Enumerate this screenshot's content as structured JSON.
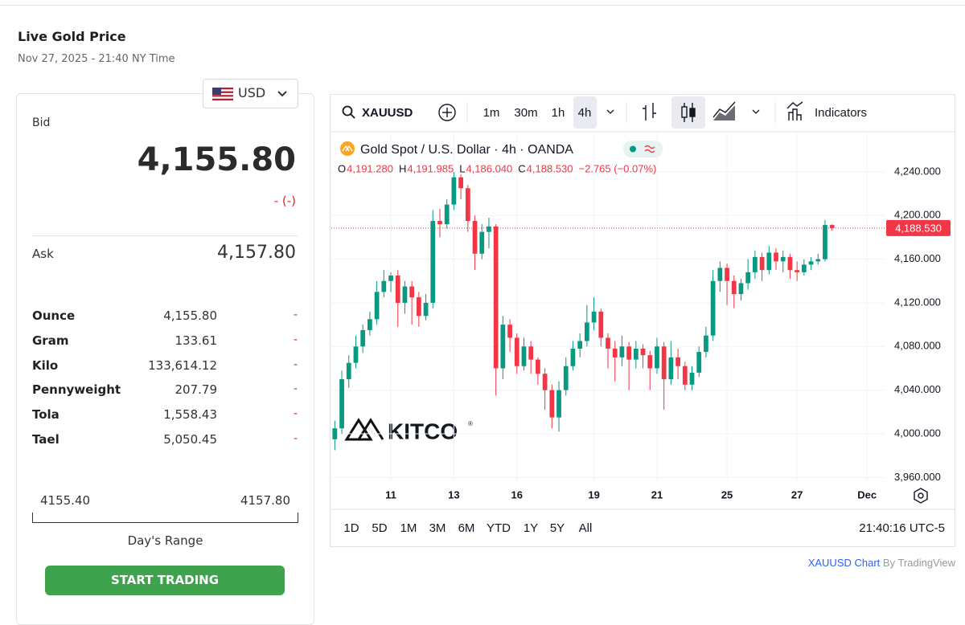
{
  "header": {
    "title": "Live Gold Price",
    "timestamp": "Nov 27, 2025 - 21:40 NY Time"
  },
  "quote": {
    "currency": "USD",
    "bid_label": "Bid",
    "bid": "4,155.80",
    "change": "- (-)",
    "ask_label": "Ask",
    "ask": "4,157.80",
    "rows": [
      [
        "Ounce",
        "4,155.80",
        "-"
      ],
      [
        "Gram",
        "133.61",
        "-"
      ],
      [
        "Kilo",
        "133,614.12",
        "-"
      ],
      [
        "Pennyweight",
        "207.79",
        "-"
      ],
      [
        "Tola",
        "1,558.43",
        "-"
      ],
      [
        "Tael",
        "5,050.45",
        "-"
      ]
    ],
    "range_low": "4155.40",
    "range_high": "4157.80",
    "range_label": "Day's Range",
    "button": "START TRADING"
  },
  "widget": {
    "symbol": "XAUUSD",
    "intervals": [
      "1m",
      "30m",
      "1h",
      "4h"
    ],
    "indicators": "Indicators",
    "ranges": [
      "1D",
      "5D",
      "1M",
      "3M",
      "6M",
      "YTD",
      "1Y",
      "5Y",
      "All"
    ],
    "clock": "21:40:16 UTC-5",
    "footer_link": "XAUUSD Chart",
    "footer_by": "By TradingView"
  },
  "chart_data": {
    "type": "candlestick",
    "title": "Gold Spot / U.S. Dollar · 4h · OANDA",
    "watermark": "KITCO",
    "watermark_mark": "®",
    "ohlc_keys": [
      "O",
      "H",
      "L",
      "C"
    ],
    "ohlc_value_labels": [
      "4,191.280",
      "4,191.985",
      "4,186.040",
      "4,188.530"
    ],
    "change_label": "−2.765 (−0.07%)",
    "up_color": "#089981",
    "down_color": "#f23645",
    "grid": true,
    "ylim": [
      3957,
      4276
    ],
    "yticks": [
      {
        "value": 3960,
        "label": "3,960.000"
      },
      {
        "value": 4000,
        "label": "4,000.000"
      },
      {
        "value": 4040,
        "label": "4,040.000"
      },
      {
        "value": 4080,
        "label": "4,080.000"
      },
      {
        "value": 4120,
        "label": "4,120.000"
      },
      {
        "value": 4160,
        "label": "4,160.000"
      },
      {
        "value": 4200,
        "label": "4,200.000"
      },
      {
        "value": 4240,
        "label": "4,240.000"
      }
    ],
    "categories": [
      null,
      null,
      null,
      null,
      null,
      null,
      null,
      null,
      "11",
      null,
      null,
      null,
      null,
      null,
      null,
      null,
      null,
      "13",
      null,
      null,
      null,
      null,
      null,
      null,
      null,
      null,
      "16",
      null,
      null,
      null,
      null,
      null,
      null,
      null,
      null,
      null,
      null,
      "19",
      null,
      null,
      null,
      null,
      null,
      null,
      null,
      null,
      "21",
      null,
      null,
      null,
      null,
      null,
      null,
      null,
      null,
      null,
      "25",
      null,
      null,
      null,
      null,
      null,
      null,
      null,
      null,
      null,
      "27",
      null,
      null,
      null,
      null,
      null,
      null,
      null,
      null,
      null,
      "Dec",
      null,
      null
    ],
    "open": [
      3995,
      4005,
      4050,
      4065,
      4080,
      4095,
      4105,
      4130,
      4140,
      4145,
      4120,
      4135,
      4125,
      4108,
      4120,
      4195,
      4192,
      4210,
      4235,
      4225,
      4195,
      4165,
      4185,
      4190,
      4060,
      4100,
      4088,
      4062,
      4080,
      4068,
      4055,
      4040,
      4015,
      4040,
      4062,
      4078,
      4085,
      4102,
      4112,
      4088,
      4078,
      4070,
      4080,
      4068,
      4078,
      4072,
      4060,
      4080,
      4050,
      4070,
      4062,
      4045,
      4056,
      4075,
      4090,
      4140,
      4152,
      4140,
      4128,
      4138,
      4148,
      4162,
      4150,
      4166,
      4158,
      4162,
      4150,
      4148,
      4155,
      4158,
      4160,
      4191.28,
      null,
      null,
      null,
      null,
      null,
      null,
      null
    ],
    "high": [
      4012,
      4058,
      4072,
      4090,
      4100,
      4112,
      4140,
      4150,
      4148,
      4150,
      4140,
      4140,
      4130,
      4128,
      4205,
      4206,
      4215,
      4240,
      4238,
      4228,
      4200,
      4192,
      4198,
      4192,
      4108,
      4105,
      4092,
      4088,
      4085,
      4070,
      4060,
      4045,
      4048,
      4070,
      4085,
      4092,
      4118,
      4125,
      4115,
      4092,
      4085,
      4090,
      4084,
      4085,
      4082,
      4076,
      4088,
      4084,
      4085,
      4078,
      4066,
      4062,
      4080,
      4098,
      4150,
      4158,
      4156,
      4145,
      4142,
      4160,
      4168,
      4166,
      4172,
      4170,
      4168,
      4165,
      4158,
      4160,
      4162,
      4165,
      4196,
      4191.985,
      null,
      null,
      null,
      null,
      null,
      null,
      null
    ],
    "low": [
      3985,
      4000,
      4042,
      4060,
      4074,
      4090,
      4100,
      4125,
      4130,
      4098,
      4110,
      4100,
      4098,
      4104,
      4115,
      4180,
      4188,
      4205,
      4215,
      4185,
      4150,
      4160,
      4170,
      4035,
      4050,
      4075,
      4055,
      4058,
      4055,
      4045,
      4022,
      4005,
      4002,
      4035,
      4058,
      4070,
      4080,
      4095,
      4080,
      4060,
      4048,
      4062,
      4040,
      4060,
      4060,
      4040,
      4055,
      4022,
      4045,
      4050,
      4040,
      4040,
      4052,
      4070,
      4085,
      4130,
      4118,
      4115,
      4122,
      4132,
      4142,
      4140,
      4146,
      4150,
      4148,
      4142,
      4140,
      4145,
      4150,
      4155,
      4158,
      4186.04,
      null,
      null,
      null,
      null,
      null,
      null,
      null
    ],
    "close": [
      4005,
      4050,
      4065,
      4080,
      4095,
      4105,
      4130,
      4140,
      4145,
      4120,
      4135,
      4125,
      4108,
      4120,
      4195,
      4192,
      4210,
      4235,
      4225,
      4195,
      4165,
      4185,
      4190,
      4060,
      4100,
      4088,
      4062,
      4080,
      4068,
      4055,
      4040,
      4015,
      4040,
      4062,
      4078,
      4085,
      4102,
      4112,
      4088,
      4078,
      4070,
      4080,
      4068,
      4078,
      4072,
      4060,
      4080,
      4050,
      4070,
      4062,
      4045,
      4056,
      4075,
      4090,
      4140,
      4152,
      4140,
      4128,
      4138,
      4148,
      4162,
      4150,
      4166,
      4158,
      4162,
      4150,
      4148,
      4155,
      4158,
      4160,
      4191.28,
      4188.53,
      null,
      null,
      null,
      null,
      null,
      null,
      null
    ]
  }
}
